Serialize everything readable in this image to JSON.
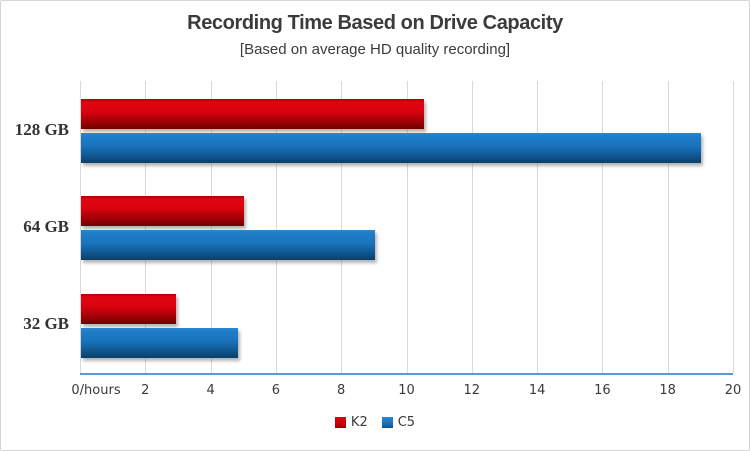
{
  "header": {
    "title": "Recording Time Based on Drive Capacity",
    "subtitle": "[Based on average HD quality recording]"
  },
  "chart_data": {
    "type": "bar",
    "orientation": "horizontal",
    "title": "Recording Time Based on Drive Capacity",
    "subtitle": "[Based on average HD quality recording]",
    "categories": [
      "128 GB",
      "64 GB",
      "32 GB"
    ],
    "series": [
      {
        "name": "K2",
        "color": "#cc0000",
        "values": [
          10.5,
          5,
          2.9
        ]
      },
      {
        "name": "C5",
        "color": "#1b6fb5",
        "values": [
          19,
          9,
          4.8
        ]
      }
    ],
    "xlabel": "hours",
    "x_axis": {
      "min": 0,
      "max": 20,
      "step": 2,
      "tick_labels": [
        "0/hours",
        "2",
        "4",
        "6",
        "8",
        "10",
        "12",
        "14",
        "16",
        "18",
        "20"
      ]
    },
    "grid": true,
    "legend_position": "bottom"
  },
  "colors": {
    "k2_red": "#cc0000",
    "c5_blue": "#1b6fb5",
    "gridline": "#d9d9d9",
    "axis_line": "#5b9bd5",
    "text": "#3a3a3a",
    "border": "#d5d5d5",
    "background": "#ffffff"
  }
}
